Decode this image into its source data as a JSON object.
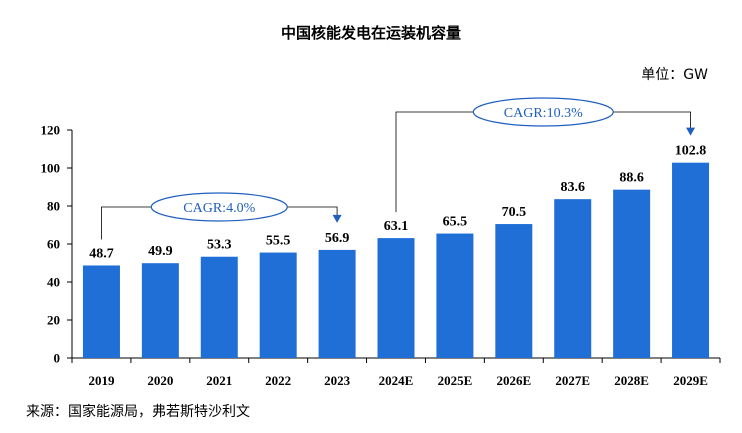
{
  "header": {
    "title": "中国核能发电在运装机容量",
    "unit": "单位：GW"
  },
  "footer": {
    "source": "来源：国家能源局，弗若斯特沙利文"
  },
  "colors": {
    "bar": "#1f6fd6",
    "annotation": "#1f5fbf"
  },
  "chart_data": {
    "type": "bar",
    "title": "中国核能发电在运装机容量",
    "xlabel": "",
    "ylabel": "",
    "categories": [
      "2019",
      "2020",
      "2021",
      "2022",
      "2023",
      "2024E",
      "2025E",
      "2026E",
      "2027E",
      "2028E",
      "2029E"
    ],
    "values": [
      48.7,
      49.9,
      53.3,
      55.5,
      56.9,
      63.1,
      65.5,
      70.5,
      83.6,
      88.6,
      102.8
    ],
    "ylim": [
      0,
      120
    ],
    "yticks": [
      0,
      20,
      40,
      60,
      80,
      100,
      120
    ],
    "grid": false,
    "legend": "none",
    "annotations": [
      {
        "text": "CAGR:4.0%",
        "from": "2019",
        "to": "2023"
      },
      {
        "text": "CAGR:10.3%",
        "from": "2024E",
        "to": "2029E"
      }
    ]
  }
}
